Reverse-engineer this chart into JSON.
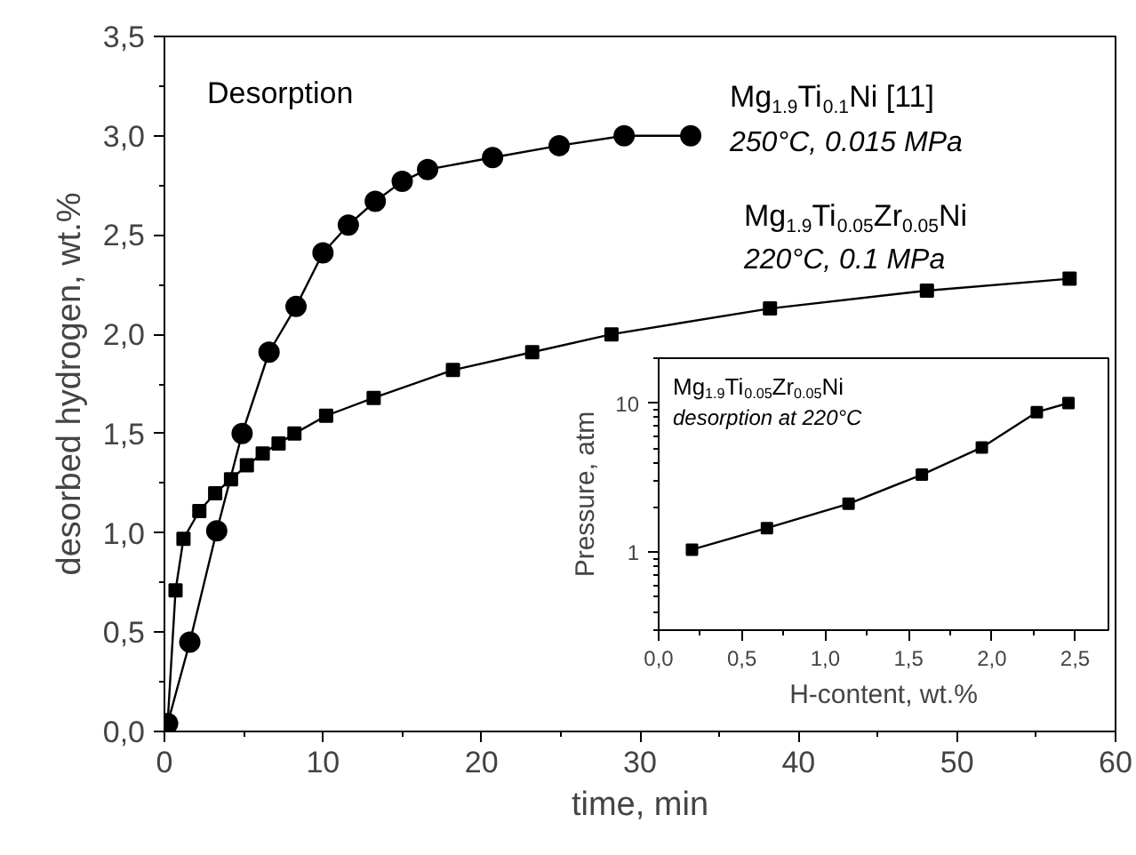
{
  "chart_data": [
    {
      "type": "line",
      "xlabel": "time, min",
      "ylabel": "desorbed hydrogen, wt.%",
      "xlim": [
        0,
        60
      ],
      "ylim": [
        0,
        3.5
      ],
      "xticks": [
        0,
        10,
        20,
        30,
        40,
        50,
        60
      ],
      "yticks": [
        {
          "value": 0,
          "label": "0,0"
        },
        {
          "value": 0.5,
          "label": "0,5"
        },
        {
          "value": 1,
          "label": "1,0"
        },
        {
          "value": 1.5,
          "label": "1,5"
        },
        {
          "value": 2,
          "label": "2,0"
        },
        {
          "value": 2.5,
          "label": "2,5"
        },
        {
          "value": 3,
          "label": "3,0"
        },
        {
          "value": 3.5,
          "label": "3,5"
        }
      ],
      "grid": false,
      "annotations": [
        "Desorption",
        "250°C, 0.015 MPa",
        "220°C, 0.1 MPa"
      ],
      "series": [
        {
          "name": "Mg$_{1.9}$Ti$_{0.1}$Ni  [11]",
          "color": "#000000",
          "marker": "circle",
          "x": [
            0.2,
            1.6,
            3.3,
            4.9,
            6.6,
            8.3,
            10.0,
            11.6,
            13.3,
            15.0,
            16.6,
            20.7,
            24.9,
            29.0,
            33.2
          ],
          "values": [
            0.04,
            0.45,
            1.01,
            1.5,
            1.91,
            2.14,
            2.41,
            2.55,
            2.67,
            2.77,
            2.83,
            2.89,
            2.95,
            3.0,
            3.0
          ]
        },
        {
          "name": "Mg$_{1.9}$Ti$_{0.05}$Zr$_{0.05}$Ni",
          "color": "#000000",
          "marker": "square",
          "x": [
            0.2,
            0.7,
            1.2,
            2.2,
            3.2,
            4.2,
            5.2,
            6.2,
            7.2,
            8.2,
            10.2,
            13.2,
            18.2,
            23.2,
            28.2,
            38.2,
            48.1,
            57.1
          ],
          "values": [
            0.04,
            0.71,
            0.97,
            1.11,
            1.2,
            1.27,
            1.34,
            1.4,
            1.45,
            1.5,
            1.59,
            1.68,
            1.82,
            1.91,
            2.0,
            2.13,
            2.22,
            2.28
          ]
        }
      ]
    },
    {
      "type": "line",
      "xlabel": "H-content, wt.%",
      "ylabel": "Pressure, atm",
      "log": "y",
      "xlim": [
        0,
        2.7
      ],
      "ylim": [
        0.3,
        20
      ],
      "xticks": [
        {
          "value": 0,
          "label": "0,0"
        },
        {
          "value": 0.5,
          "label": "0,5"
        },
        {
          "value": 1,
          "label": "1,0"
        },
        {
          "value": 1.5,
          "label": "1,5"
        },
        {
          "value": 2,
          "label": "2,0"
        },
        {
          "value": 2.5,
          "label": "2,5"
        }
      ],
      "yticks": [
        1,
        10
      ],
      "grid": false,
      "annotations": [
        "Mg$_{1.9}$Ti$_{0.05}$Zr$_{0.05}$Ni",
        "desorption at 220°C"
      ],
      "series": [
        {
          "color": "#000000",
          "marker": "square",
          "x": [
            0.2,
            0.65,
            1.14,
            1.58,
            1.94,
            2.27,
            2.46
          ],
          "values": [
            1.04,
            1.45,
            2.11,
            3.31,
            5.04,
            8.7,
            10.0
          ]
        }
      ]
    }
  ]
}
